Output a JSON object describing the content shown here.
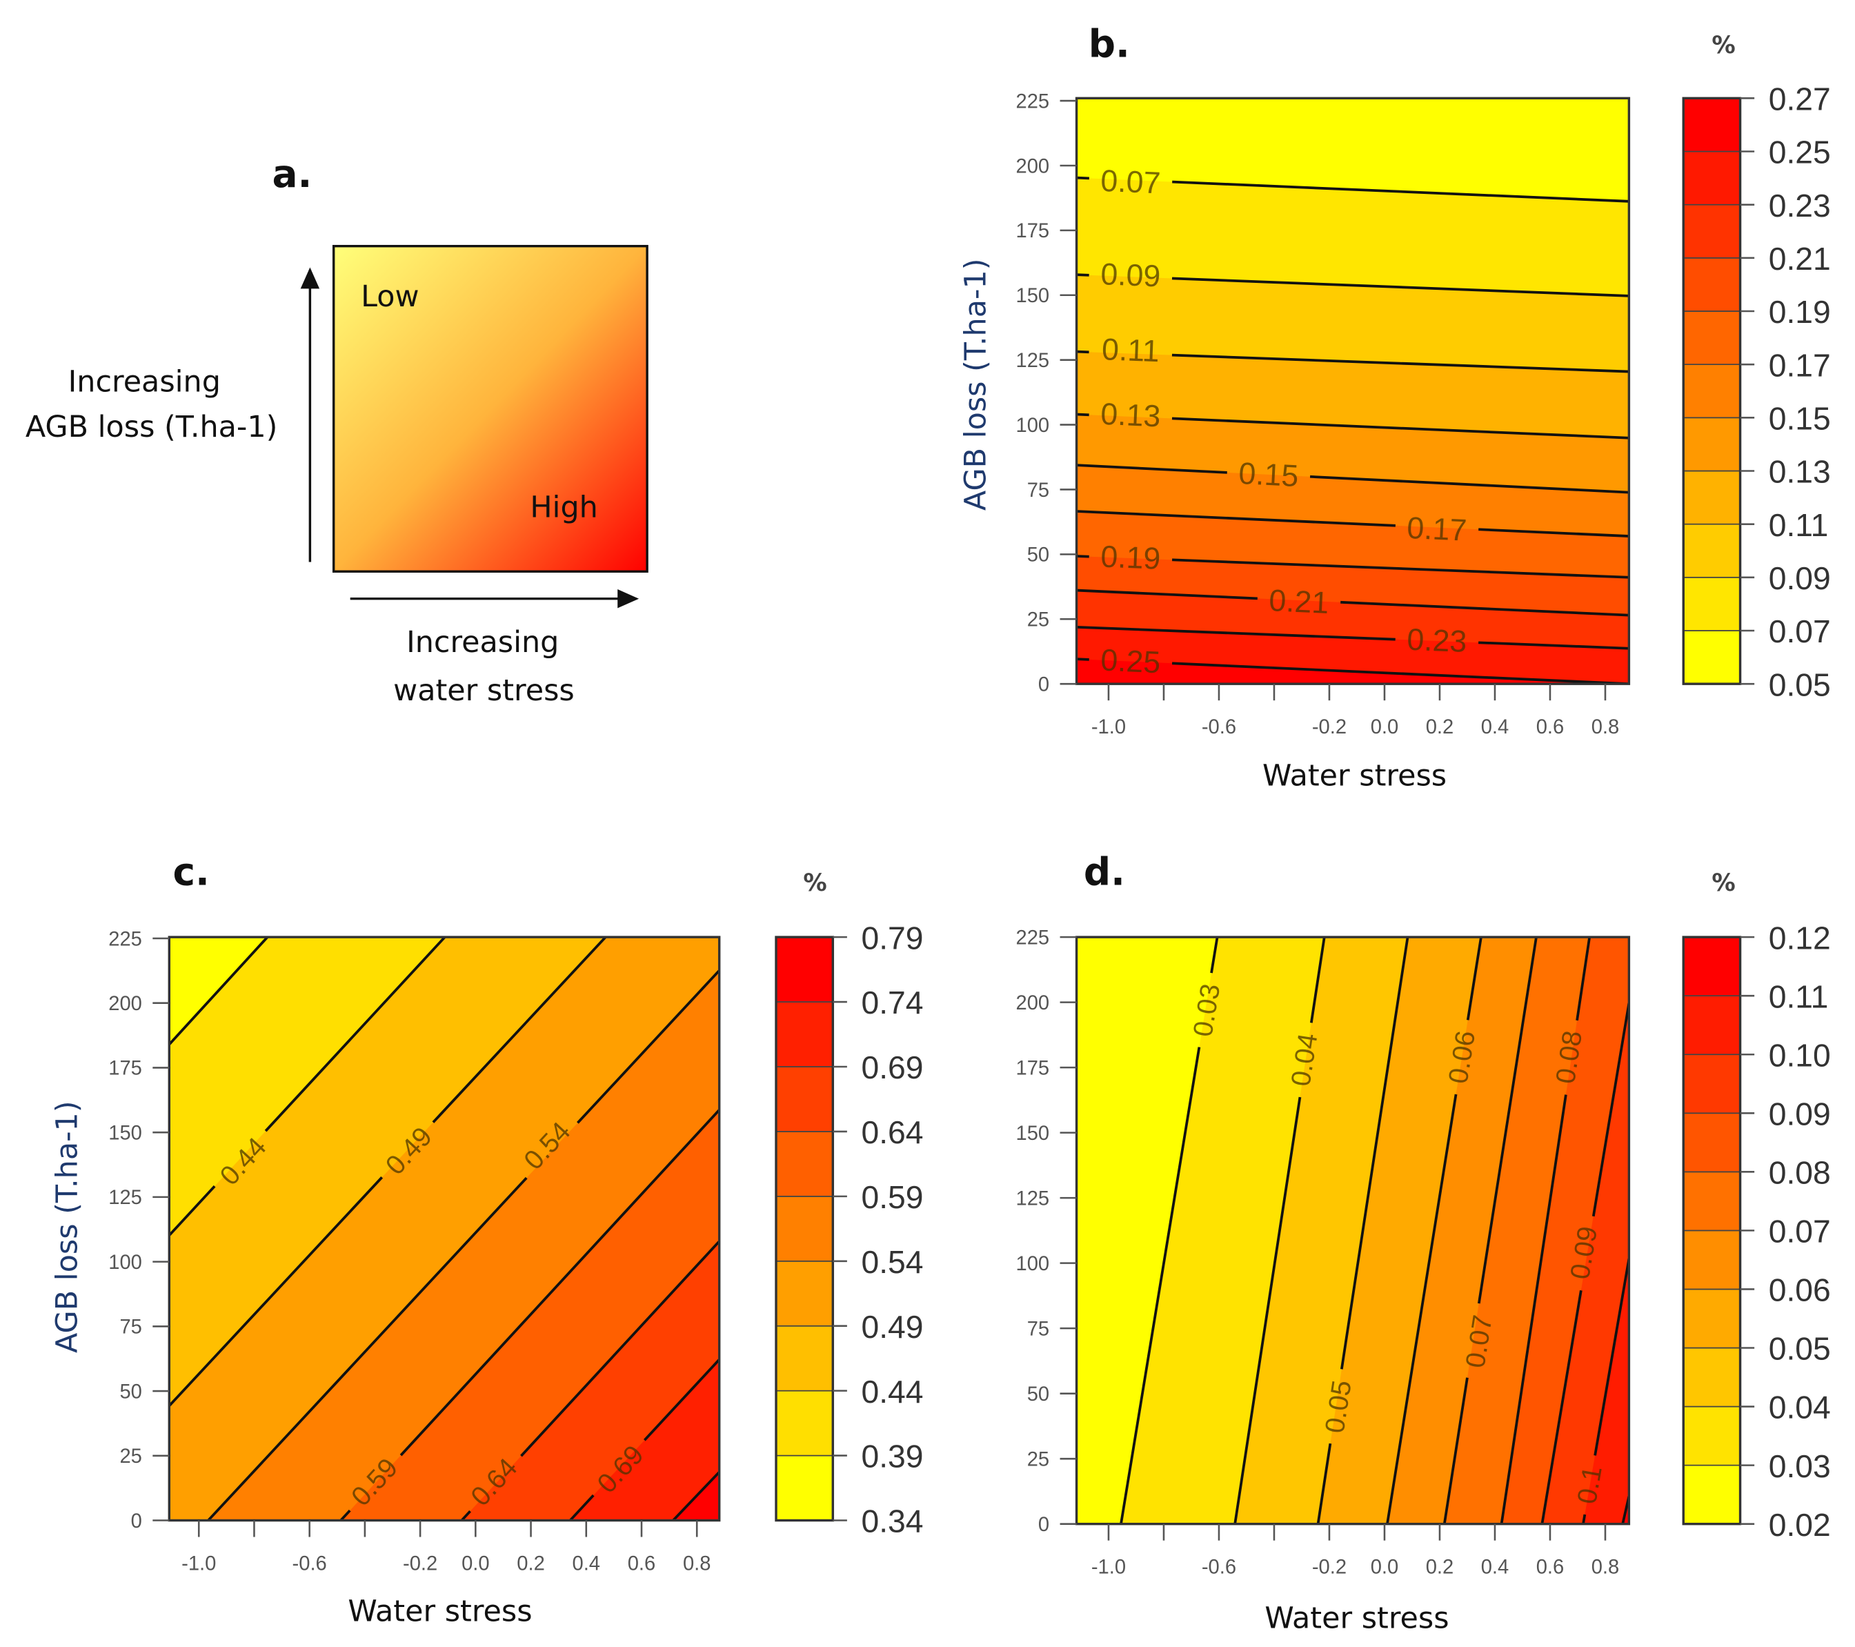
{
  "panel_a": {
    "letter": "a.",
    "low": "Low",
    "high": "High",
    "y_label_1": "Increasing",
    "y_label_2": "AGB loss (T.ha-1)",
    "x_label_1": "Increasing",
    "x_label_2": "water stress",
    "gradient_colors": [
      "#FFFF7A",
      "#FFB43C",
      "#FF0000"
    ]
  },
  "chart_data": [
    {
      "id": "b",
      "type": "contour",
      "letter": "b.",
      "unit": "%",
      "xlabel": "Water stress",
      "ylabel": "AGB loss (T.ha-1)",
      "xlim": [
        -1.116,
        0.886
      ],
      "ylim": [
        0,
        226
      ],
      "x_ticks": [
        -1.0,
        -0.8,
        -0.6,
        -0.4,
        -0.2,
        0.0,
        0.2,
        0.4,
        0.6,
        0.8
      ],
      "x_tick_labels": [
        "-1.0",
        "",
        "-0.6",
        "",
        "-0.2",
        "0.0",
        "0.2",
        "0.4",
        "0.6",
        "0.8"
      ],
      "y_ticks": [
        0,
        25,
        50,
        75,
        100,
        125,
        150,
        175,
        200,
        225
      ],
      "y_tick_labels": [
        "0",
        "25",
        "50",
        "75",
        "100",
        "125",
        "150",
        "175",
        "200",
        "225"
      ],
      "breaks": [
        "0.05",
        "0.07",
        "0.09",
        "0.11",
        "0.13",
        "0.15",
        "0.17",
        "0.19",
        "0.21",
        "0.23",
        "0.25",
        "0.27"
      ],
      "contours": [
        {
          "level": 0.07,
          "label": "0.07",
          "from": [
            -1.116,
            195.3
          ],
          "to": [
            0.886,
            186.2
          ],
          "label_at": [
            -0.92,
            194
          ]
        },
        {
          "level": 0.09,
          "label": "0.09",
          "from": [
            -1.116,
            157.9
          ],
          "to": [
            0.886,
            149.7
          ],
          "label_at": [
            -0.92,
            158
          ]
        },
        {
          "level": 0.11,
          "label": "0.11",
          "from": [
            -1.116,
            128.2
          ],
          "to": [
            0.886,
            120.5
          ],
          "label_at": [
            -0.92,
            129
          ]
        },
        {
          "level": 0.13,
          "label": "0.13",
          "from": [
            -1.116,
            104.0
          ],
          "to": [
            0.886,
            94.9
          ],
          "label_at": [
            -0.92,
            104
          ]
        },
        {
          "level": 0.15,
          "label": "0.15",
          "from": [
            -1.116,
            84.4
          ],
          "to": [
            0.886,
            73.9
          ],
          "label_at": [
            -0.42,
            81
          ]
        },
        {
          "level": 0.17,
          "label": "0.17",
          "from": [
            -1.116,
            66.6
          ],
          "to": [
            0.886,
            57.0
          ],
          "label_at": [
            0.19,
            60
          ]
        },
        {
          "level": 0.19,
          "label": "0.19",
          "from": [
            -1.116,
            49.3
          ],
          "to": [
            0.886,
            41.1
          ],
          "label_at": [
            -0.92,
            49
          ]
        },
        {
          "level": 0.21,
          "label": "0.21",
          "from": [
            -1.116,
            36.1
          ],
          "to": [
            0.886,
            26.5
          ],
          "label_at": [
            -0.31,
            32
          ]
        },
        {
          "level": 0.23,
          "label": "0.23",
          "from": [
            -1.116,
            21.9
          ],
          "to": [
            0.886,
            13.7
          ],
          "label_at": [
            0.19,
            17
          ]
        },
        {
          "level": 0.25,
          "label": "0.25",
          "from": [
            -1.116,
            9.6
          ],
          "to": [
            0.886,
            0.0
          ],
          "label_at": [
            -0.92,
            9
          ]
        }
      ]
    },
    {
      "id": "c",
      "type": "contour",
      "letter": "c.",
      "unit": "%",
      "xlabel": "Water stress",
      "ylabel": "AGB loss (T.ha-1)",
      "xlim": [
        -1.107,
        0.881
      ],
      "ylim": [
        0,
        225.5
      ],
      "x_ticks": [
        -1.0,
        -0.8,
        -0.6,
        -0.4,
        -0.2,
        0.0,
        0.2,
        0.4,
        0.6,
        0.8
      ],
      "x_tick_labels": [
        "-1.0",
        "",
        "-0.6",
        "",
        "-0.2",
        "0.0",
        "0.2",
        "0.4",
        "0.6",
        "0.8"
      ],
      "y_ticks": [
        0,
        25,
        50,
        75,
        100,
        125,
        150,
        175,
        200,
        225
      ],
      "y_tick_labels": [
        "0",
        "25",
        "50",
        "75",
        "100",
        "125",
        "150",
        "175",
        "200",
        "225"
      ],
      "breaks": [
        "0.34",
        "0.39",
        "0.44",
        "0.49",
        "0.54",
        "0.59",
        "0.64",
        "0.69",
        "0.74",
        "0.79"
      ],
      "contours": [
        {
          "level": 0.39,
          "label": "",
          "from": [
            -1.107,
            184.0
          ],
          "to": [
            -0.752,
            225.5
          ],
          "label_at": null
        },
        {
          "level": 0.44,
          "label": "0.44",
          "from": [
            -1.107,
            110.2
          ],
          "to": [
            -0.111,
            225.5
          ],
          "label_at": [
            -0.842,
            139
          ]
        },
        {
          "level": 0.49,
          "label": "0.49",
          "from": [
            -1.107,
            44.3
          ],
          "to": [
            0.47,
            225.5
          ],
          "label_at": [
            -0.243,
            143
          ]
        },
        {
          "level": 0.54,
          "label": "0.54",
          "from": [
            -0.966,
            0
          ],
          "to": [
            0.881,
            212.6
          ],
          "label_at": [
            0.257,
            145
          ]
        },
        {
          "level": 0.59,
          "label": "0.59",
          "from": [
            -0.487,
            0
          ],
          "to": [
            0.881,
            158.7
          ],
          "label_at": [
            -0.367,
            15
          ]
        },
        {
          "level": 0.64,
          "label": "0.64",
          "from": [
            -0.05,
            0
          ],
          "to": [
            0.881,
            107.9
          ],
          "label_at": [
            0.065,
            15
          ]
        },
        {
          "level": 0.69,
          "label": "0.69",
          "from": [
            0.342,
            0
          ],
          "to": [
            0.881,
            62.2
          ],
          "label_at": [
            0.522,
            20
          ]
        },
        {
          "level": 0.74,
          "label": "",
          "from": [
            0.714,
            0
          ],
          "to": [
            0.881,
            18.7
          ],
          "label_at": null
        }
      ]
    },
    {
      "id": "d",
      "type": "contour",
      "letter": "d.",
      "unit": "%",
      "xlabel": "Water stress",
      "ylabel": "",
      "xlim": [
        -1.116,
        0.886
      ],
      "ylim": [
        0,
        225
      ],
      "x_ticks": [
        -1.0,
        -0.8,
        -0.6,
        -0.4,
        -0.2,
        0.0,
        0.2,
        0.4,
        0.6,
        0.8
      ],
      "x_tick_labels": [
        "-1.0",
        "",
        "-0.6",
        "",
        "-0.2",
        "0.0",
        "0.2",
        "0.4",
        "0.6",
        "0.8"
      ],
      "y_ticks": [
        0,
        25,
        50,
        75,
        100,
        125,
        150,
        175,
        200,
        225
      ],
      "y_tick_labels": [
        "0",
        "25",
        "50",
        "75",
        "100",
        "125",
        "150",
        "175",
        "200",
        "225"
      ],
      "breaks": [
        "0.02",
        "0.03",
        "0.04",
        "0.05",
        "0.06",
        "0.07",
        "0.08",
        "0.09",
        "0.10",
        "0.11",
        "0.12"
      ],
      "contours": [
        {
          "level": 0.03,
          "label": "0.03",
          "from": [
            -0.955,
            0
          ],
          "to": [
            -0.606,
            225
          ],
          "label_at": [
            -0.647,
            197
          ]
        },
        {
          "level": 0.04,
          "label": "0.04",
          "from": [
            -0.542,
            0
          ],
          "to": [
            -0.218,
            225
          ],
          "label_at": [
            -0.293,
            178
          ]
        },
        {
          "level": 0.05,
          "label": "0.05",
          "from": [
            -0.241,
            0
          ],
          "to": [
            0.084,
            225
          ],
          "label_at": [
            -0.17,
            45
          ]
        },
        {
          "level": 0.06,
          "label": "0.06",
          "from": [
            0.01,
            0
          ],
          "to": [
            0.35,
            225
          ],
          "label_at": [
            0.278,
            179
          ]
        },
        {
          "level": 0.07,
          "label": "0.07",
          "from": [
            0.217,
            0
          ],
          "to": [
            0.55,
            225
          ],
          "label_at": [
            0.34,
            70
          ]
        },
        {
          "level": 0.08,
          "label": "0.08",
          "from": [
            0.424,
            0
          ],
          "to": [
            0.743,
            225
          ],
          "label_at": [
            0.666,
            179
          ]
        },
        {
          "level": 0.09,
          "label": "0.09",
          "from": [
            0.571,
            0
          ],
          "to": [
            0.886,
            199.7
          ],
          "label_at": [
            0.72,
            104
          ]
        },
        {
          "level": 0.1,
          "label": "0.1",
          "from": [
            0.72,
            0
          ],
          "to": [
            0.886,
            101.7
          ],
          "label_at": [
            0.741,
            15
          ]
        },
        {
          "level": 0.11,
          "label": "",
          "from": [
            0.863,
            0
          ],
          "to": [
            0.886,
            10.6
          ],
          "label_at": null
        }
      ]
    }
  ]
}
